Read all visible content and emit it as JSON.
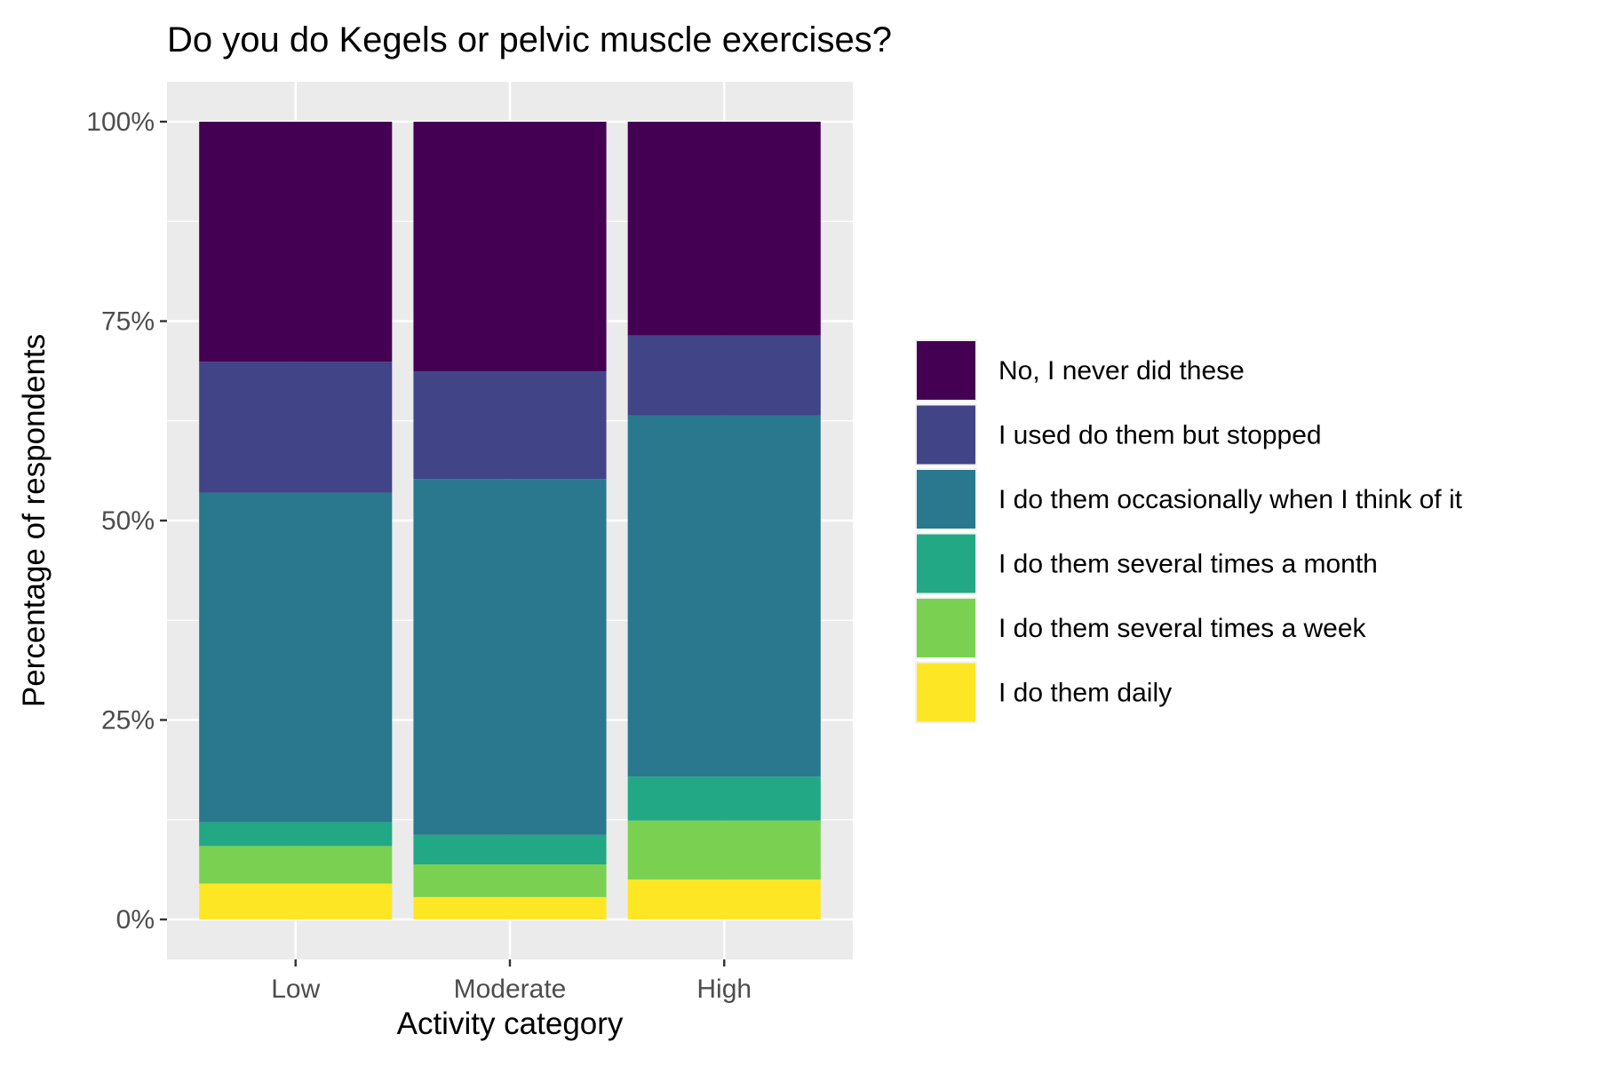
{
  "chart_data": {
    "type": "bar",
    "stacked": "percent",
    "title": "Do you do Kegels or pelvic muscle exercises?",
    "xlabel": "Activity category",
    "ylabel": "Percentage of respondents",
    "categories": [
      "Low",
      "Moderate",
      "High"
    ],
    "ylim": [
      0,
      1
    ],
    "y_ticks": [
      {
        "value": 0,
        "label": "0%"
      },
      {
        "value": 0.25,
        "label": "25%"
      },
      {
        "value": 0.5,
        "label": "50%"
      },
      {
        "value": 0.75,
        "label": "75%"
      },
      {
        "value": 1,
        "label": "100%"
      }
    ],
    "grid": true,
    "legend_position": "right",
    "series": [
      {
        "name": "I do them daily",
        "color": "#FDE725",
        "values": [
          0.045,
          0.028,
          0.05
        ]
      },
      {
        "name": "I do them several times a week",
        "color": "#7AD151",
        "values": [
          0.047,
          0.041,
          0.074
        ]
      },
      {
        "name": "I do them several times a month",
        "color": "#22A884",
        "values": [
          0.03,
          0.037,
          0.055
        ]
      },
      {
        "name": "I do them occasionally when I think of it",
        "color": "#2A788E",
        "values": [
          0.413,
          0.446,
          0.453
        ]
      },
      {
        "name": "I used do them but stopped",
        "color": "#414487",
        "values": [
          0.164,
          0.135,
          0.1
        ]
      },
      {
        "name": "No, I never did these",
        "color": "#440154",
        "values": [
          0.301,
          0.313,
          0.268
        ]
      }
    ],
    "legend_order": [
      "No, I never did these",
      "I used do them but stopped",
      "I do them occasionally when I think of it",
      "I do them several times a month",
      "I do them several times a week",
      "I do them daily"
    ]
  }
}
